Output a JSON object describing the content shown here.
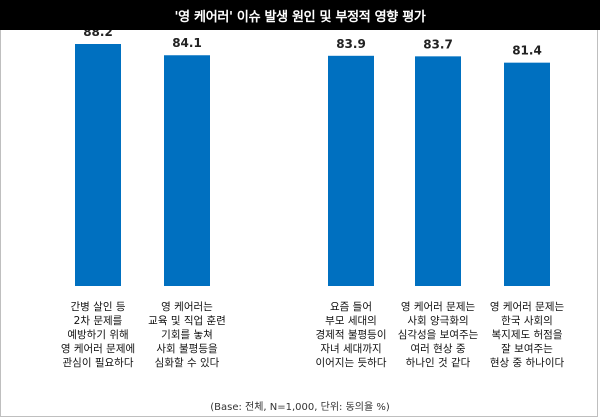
{
  "chart_data": {
    "type": "bar",
    "title": "'영 케어러' 이슈 발생 원인 및 부정적 영향 평가",
    "note": "(Base: 전체, N=1,000, 단위: 동의율 %)",
    "ylim": [
      0,
      100
    ],
    "grid": false,
    "categories": [
      [
        "간병 살인 등",
        "2차 문제를",
        "예방하기 위해",
        "영 케어러 문제에",
        "관심이 필요하다"
      ],
      [
        "영 케어러는",
        "교육 및 직업 훈련",
        "기회를 놓쳐",
        "사회 불평등을",
        "심화할 수 있다"
      ],
      [
        "요즘 들어",
        "부모 세대의",
        "경제적 불평등이",
        "자녀 세대까지",
        "이어지는 듯하다"
      ],
      [
        "영 케어러 문제는",
        "사회 양극화의",
        "심각성을 보여주는",
        "여러 현상 중",
        "하나인 것 같다"
      ],
      [
        "영 케어러 문제는",
        "한국 사회의",
        "복지제도 허점을",
        "잘 보여주는",
        "현상 중 하나이다"
      ]
    ],
    "values": [
      88.2,
      84.1,
      83.9,
      83.7,
      81.4
    ],
    "value_labels": [
      "88.2",
      "84.1",
      "83.9",
      "83.7",
      "81.4"
    ],
    "bar_color": "#0070c0"
  }
}
